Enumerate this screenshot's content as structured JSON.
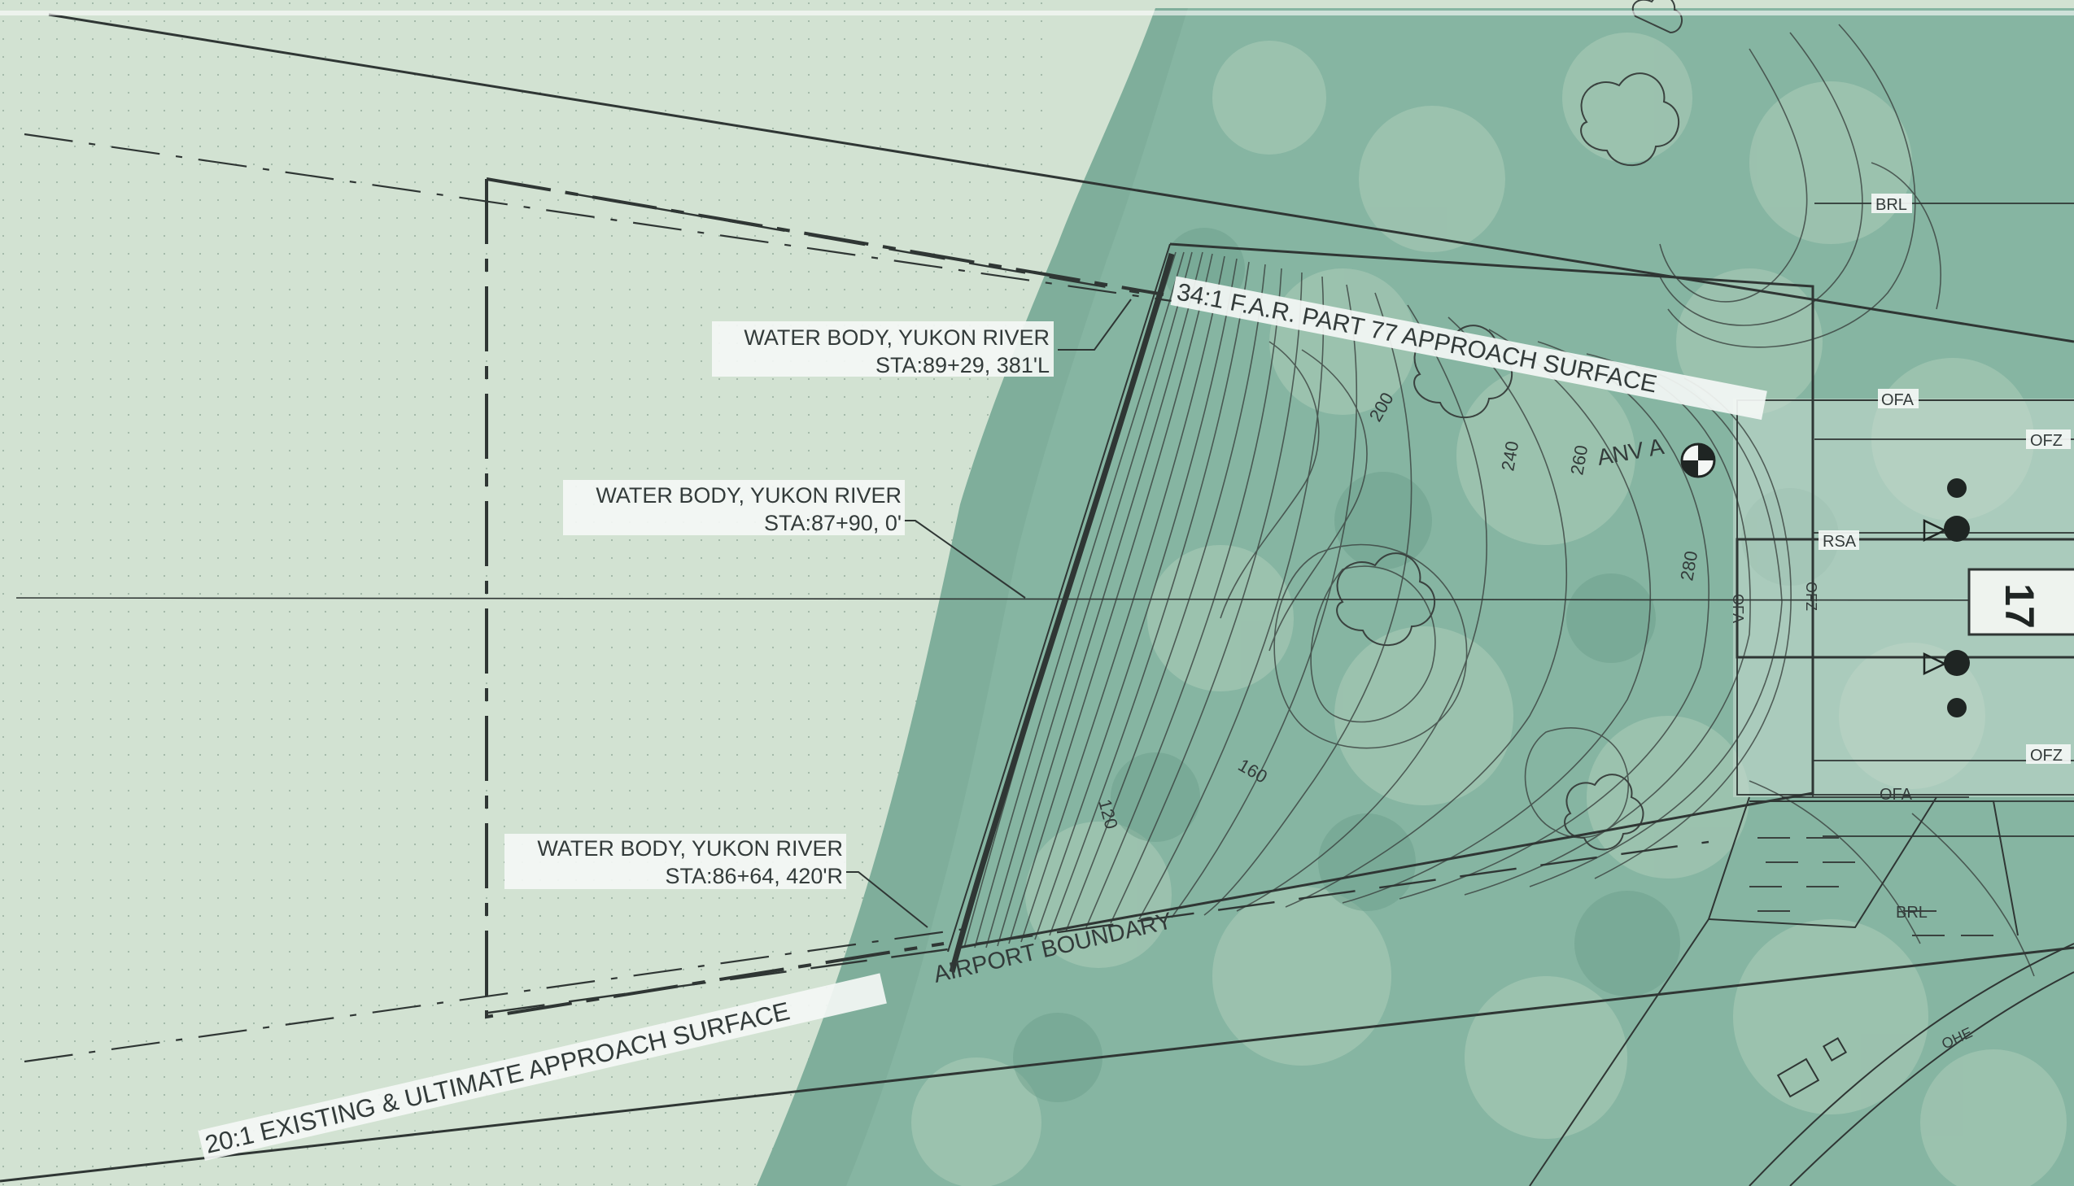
{
  "sheet": {
    "background_color": "#cfe0cf",
    "tree_canopy_color": "#6e9f8e",
    "line_color": "#2f3634"
  },
  "callouts": [
    {
      "title": "WATER BODY, YUKON RIVER",
      "station": "STA:89+29, 381'L"
    },
    {
      "title": "WATER BODY, YUKON RIVER",
      "station": "STA:87+90, 0'"
    },
    {
      "title": "WATER BODY, YUKON RIVER",
      "station": "STA:86+64, 420'R"
    }
  ],
  "surfaces": {
    "far_part77": "34:1 F.A.R. PART 77 APPROACH SURFACE",
    "existing_ultimate": "20:1 EXISTING & ULTIMATE APPROACH SURFACE",
    "airport_boundary": "AIRPORT BOUNDARY"
  },
  "contours": [
    "200",
    "240",
    "260",
    "280",
    "160",
    "120"
  ],
  "control_point": "ANV A",
  "runway_end_number": "17",
  "zone_labels": {
    "brl": "BRL",
    "ofa": "OFA",
    "ofz": "OFZ",
    "rsa": "RSA",
    "ohe": "OHE"
  }
}
